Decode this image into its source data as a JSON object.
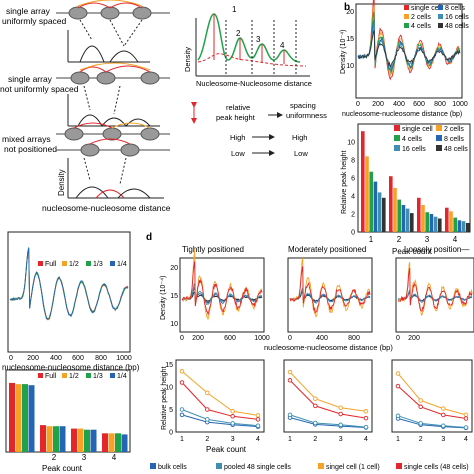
{
  "panel_a": {
    "rows": [
      {
        "label_lines": [
          "single array",
          "uniformly spaced"
        ]
      },
      {
        "label_lines": [
          "single array",
          "not uniformly spaced"
        ]
      },
      {
        "label_lines": [
          "mixed arrays",
          "not positioned"
        ]
      }
    ],
    "density_axis": "Density",
    "xaxis": "nucleosome-nucleosome distance",
    "schematic": {
      "ylabel": "Density",
      "xlabel": "Nucleosome-Nucleosome distance",
      "peak_numbers": [
        "1",
        "2",
        "3",
        "4"
      ]
    },
    "legend": {
      "arrow_text_lines": [
        "relative",
        "peak height"
      ],
      "right_text_lines": [
        "spacing",
        "uniformness"
      ],
      "high_left": "High",
      "high_right": "High",
      "low_left": "Low",
      "low_right": "Low"
    }
  },
  "panel_b": {
    "letter": "b",
    "colors": {
      "c1": "#e3262b",
      "c2": "#f6a227",
      "c4": "#1fa24a",
      "c8": "#2466b3",
      "c16": "#3f8fb0",
      "c48": "#333333"
    },
    "line_chart": {
      "ylabel": "Density (10⁻⁴)",
      "xlabel": "nucleosome-nucleosome distance (bp)",
      "yticks": [
        "10",
        "15",
        "20"
      ],
      "xticks": [
        "0",
        "200",
        "400",
        "600",
        "800",
        "1000"
      ],
      "legend": [
        {
          "name": "single cell",
          "color": "#e3262b"
        },
        {
          "name": "2 cells",
          "color": "#f6a227"
        },
        {
          "name": "4 cells",
          "color": "#1fa24a"
        },
        {
          "name": "8 cells",
          "color": "#2466b3"
        },
        {
          "name": "16 cells",
          "color": "#3f8fb0"
        },
        {
          "name": "48 cells",
          "color": "#333333"
        }
      ]
    },
    "bar_chart": {
      "ylabel": "Relative peak height",
      "xlabel": "Peak count",
      "yticks": [
        "0",
        "2",
        "4",
        "6",
        "8",
        "10"
      ],
      "xticks": [
        "1",
        "2",
        "3",
        "4"
      ],
      "legend": [
        {
          "name": "single cell",
          "color": "#e3262b"
        },
        {
          "name": "2 cells",
          "color": "#f6a227"
        },
        {
          "name": "4 cells",
          "color": "#1fa24a"
        },
        {
          "name": "8 cells",
          "color": "#2466b3"
        },
        {
          "name": "16 cells",
          "color": "#3f8fb0"
        },
        {
          "name": "48 cells",
          "color": "#333333"
        }
      ]
    }
  },
  "panel_c": {
    "line_chart": {
      "xlabel": "nucleosome-nucleosome distance (bp)",
      "xticks": [
        "0",
        "200",
        "400",
        "600",
        "800",
        "1000"
      ],
      "legend": [
        {
          "name": "Full",
          "color": "#e3262b"
        },
        {
          "name": "1/2",
          "color": "#f6a227"
        },
        {
          "name": "1/3",
          "color": "#1fa24a"
        },
        {
          "name": "1/4",
          "color": "#2466b3"
        }
      ]
    },
    "bar_chart": {
      "xlabel": "Peak count",
      "xticks": [
        "2",
        "3",
        "4"
      ],
      "legend": [
        {
          "name": "Full",
          "color": "#e3262b"
        },
        {
          "name": "1/2",
          "color": "#f6a227"
        },
        {
          "name": "1/3",
          "color": "#1fa24a"
        },
        {
          "name": "1/4",
          "color": "#2466b3"
        }
      ]
    }
  },
  "panel_d": {
    "letter": "d",
    "titles": [
      "Tightly positioned",
      "Moderately positioned",
      "Loosely position—"
    ],
    "density_ylabel": "Density (10⁻⁴)",
    "density_yticks": [
      "10",
      "15",
      "20"
    ],
    "density_xlabel": "nucleosome-nucleosome distance (bp)",
    "xticks_sets": [
      [
        "0",
        "200",
        "600",
        "1000"
      ],
      [
        "0",
        "400",
        "800"
      ],
      [
        "0",
        "200"
      ]
    ],
    "peak_ylabel": "Relative peak height",
    "peak_yticks": [
      "0",
      "5",
      "10",
      "15"
    ],
    "peak_xlabel": "Peak count",
    "peak_xticks": [
      "1",
      "2",
      "3",
      "4"
    ],
    "legend": [
      {
        "name": "bulk cells",
        "color": "#2466b3"
      },
      {
        "name": "pooled 48 single cells",
        "color": "#3f8fb0"
      },
      {
        "name": "singel cell (1 cell)",
        "color": "#f6a227"
      },
      {
        "name": "single cells (48 cells)",
        "color": "#e3262b"
      }
    ]
  },
  "chart_data": [
    {
      "type": "bar",
      "panel": "b",
      "xlabel": "Peak count",
      "ylabel": "Relative peak height",
      "categories": [
        "1",
        "2",
        "3",
        "4"
      ],
      "ylim": [
        0,
        12
      ],
      "series": [
        {
          "name": "single cell",
          "values": [
            11.2,
            6.2,
            3.8,
            2.7
          ]
        },
        {
          "name": "2 cells",
          "values": [
            8.4,
            4.9,
            3.0,
            2.3
          ]
        },
        {
          "name": "4 cells",
          "values": [
            6.7,
            3.6,
            2.2,
            1.6
          ]
        },
        {
          "name": "8 cells",
          "values": [
            5.6,
            3.0,
            2.0,
            1.3
          ]
        },
        {
          "name": "16 cells",
          "values": [
            4.4,
            2.6,
            1.7,
            1.2
          ]
        },
        {
          "name": "48 cells",
          "values": [
            3.8,
            2.1,
            1.5,
            1.0
          ]
        }
      ]
    },
    {
      "type": "bar",
      "panel": "c",
      "xlabel": "Peak count",
      "categories": [
        "1",
        "2",
        "3",
        "4"
      ],
      "ylim": [
        0,
        7
      ],
      "series": [
        {
          "name": "Full",
          "values": [
            5.9,
            2.3,
            2.0,
            1.6
          ]
        },
        {
          "name": "1/2",
          "values": [
            5.8,
            2.2,
            2.0,
            1.6
          ]
        },
        {
          "name": "1/3",
          "values": [
            5.8,
            2.2,
            1.9,
            1.6
          ]
        },
        {
          "name": "1/4",
          "values": [
            5.7,
            2.2,
            1.9,
            1.5
          ]
        }
      ]
    },
    {
      "type": "line",
      "panel": "d",
      "xlabel": "Peak count",
      "ylabel": "Relative peak height",
      "x": [
        1,
        2,
        3,
        4
      ],
      "ylim": [
        0,
        16
      ],
      "subplots": [
        {
          "title": "Tightly positioned",
          "series": [
            {
              "name": "bulk cells",
              "values": [
                3.8,
                2.2,
                1.6,
                1.2
              ]
            },
            {
              "name": "pooled 48 single cells",
              "values": [
                5.0,
                2.8,
                1.9,
                1.4
              ]
            },
            {
              "name": "singel cell (1 cell)",
              "values": [
                13.5,
                8.7,
                4.6,
                3.7
              ]
            },
            {
              "name": "single cells (48 cells)",
              "values": [
                11.0,
                5.0,
                3.5,
                2.8
              ]
            }
          ]
        },
        {
          "title": "Moderately positioned",
          "series": [
            {
              "name": "bulk cells",
              "values": [
                3.2,
                1.7,
                1.3,
                1.0
              ]
            },
            {
              "name": "pooled 48 single cells",
              "values": [
                3.8,
                2.0,
                1.6,
                1.1
              ]
            },
            {
              "name": "singel cell (1 cell)",
              "values": [
                13.3,
                7.4,
                5.4,
                4.6
              ]
            },
            {
              "name": "single cells (48 cells)",
              "values": [
                11.5,
                5.8,
                4.0,
                3.1
              ]
            }
          ]
        },
        {
          "title": "Loosely position—",
          "series": [
            {
              "name": "bulk cells",
              "values": [
                3.0,
                1.6,
                1.2,
                0.9
              ]
            },
            {
              "name": "pooled 48 single cells",
              "values": [
                3.6,
                1.9,
                1.4,
                1.0
              ]
            },
            {
              "name": "singel cell (1 cell)",
              "values": [
                13.0,
                7.0,
                5.2,
                3.8
              ]
            },
            {
              "name": "single cells (48 cells)",
              "values": [
                10.2,
                5.6,
                3.8,
                3.0
              ]
            }
          ]
        }
      ]
    }
  ]
}
